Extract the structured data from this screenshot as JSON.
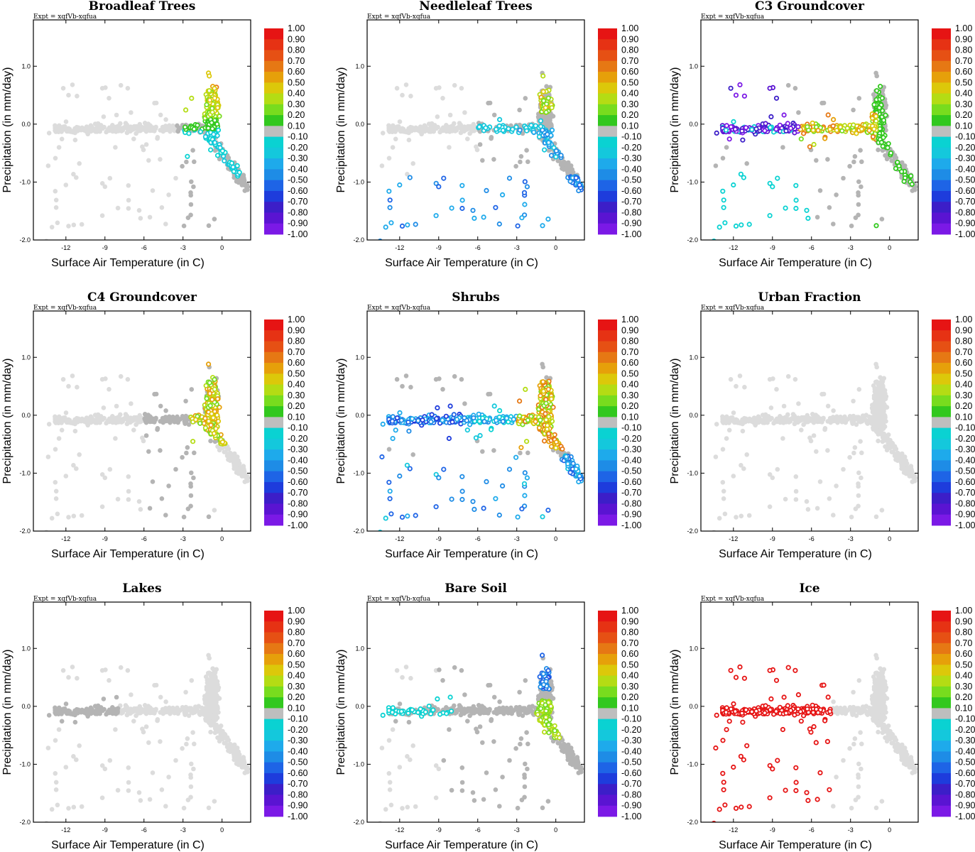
{
  "figure": {
    "expt_label": "Expt = xqfVb-xqfua"
  },
  "colors": {
    "background_points": "#dcdcdc",
    "neutral_points": "#b4b4b4",
    "bins": [
      "#7b19e6",
      "#5a14d2",
      "#3c1ec8",
      "#1e3cdc",
      "#1e64e6",
      "#1e8ce6",
      "#1eaaeb",
      "#14c8dc",
      "#0ad2d2",
      "#bebebe",
      "#32c81e",
      "#78dc1e",
      "#b4dc14",
      "#dcc80a",
      "#e6a00a",
      "#e67814",
      "#e65014",
      "#e63214",
      "#e61414"
    ]
  },
  "chart_data": [
    {
      "type": "scatter",
      "title": "Broadleaf Trees",
      "xlabel": "Surface Air Temperature (in C)",
      "ylabel": "Precipitation (in mm/day)",
      "xlim": [
        -14.5,
        2.2
      ],
      "ylim": [
        -2.0,
        1.8
      ],
      "xticks": [
        "-12",
        "-9",
        "-6",
        "-3",
        "0"
      ],
      "yticks": [
        "-2.0",
        "-1.0",
        "0.0",
        "1.0"
      ],
      "colorbar_labels": [
        "1.00",
        "0.90",
        "0.80",
        "0.70",
        "0.60",
        "0.50",
        "0.40",
        "0.30",
        "0.20",
        "0.10",
        "-0.10",
        "-0.20",
        "-0.30",
        "-0.40",
        "-0.50",
        "-0.60",
        "-0.70",
        "-0.80",
        "-0.90",
        "-1.00"
      ],
      "pattern": "hot_vertical"
    },
    {
      "type": "scatter",
      "title": "Needleleaf Trees",
      "xlabel": "Surface Air Temperature (in C)",
      "ylabel": "Precipitation (in mm/day)",
      "xlim": [
        -14.5,
        2.2
      ],
      "ylim": [
        -2.0,
        1.8
      ],
      "xticks": [
        "-12",
        "-9",
        "-6",
        "-3",
        "0"
      ],
      "yticks": [
        "-2.0",
        "-1.0",
        "0.0",
        "1.0"
      ],
      "colorbar_labels": [
        "1.00",
        "0.90",
        "0.80",
        "0.70",
        "0.60",
        "0.50",
        "0.40",
        "0.30",
        "0.20",
        "0.10",
        "-0.10",
        "-0.20",
        "-0.30",
        "-0.40",
        "-0.50",
        "-0.60",
        "-0.70",
        "-0.80",
        "-0.90",
        "-1.00"
      ],
      "pattern": "needleleaf"
    },
    {
      "type": "scatter",
      "title": "C3 Groundcover",
      "xlabel": "Surface Air Temperature (in C)",
      "ylabel": "Precipitation (in mm/day)",
      "xlim": [
        -14.5,
        2.2
      ],
      "ylim": [
        -2.0,
        1.8
      ],
      "xticks": [
        "-12",
        "-9",
        "-6",
        "-3",
        "0"
      ],
      "yticks": [
        "-2.0",
        "-1.0",
        "0.0",
        "1.0"
      ],
      "colorbar_labels": [
        "1.00",
        "0.90",
        "0.80",
        "0.70",
        "0.60",
        "0.50",
        "0.40",
        "0.30",
        "0.20",
        "0.10",
        "-0.10",
        "-0.20",
        "-0.30",
        "-0.40",
        "-0.50",
        "-0.60",
        "-0.70",
        "-0.80",
        "-0.90",
        "-1.00"
      ],
      "pattern": "c3"
    },
    {
      "type": "scatter",
      "title": "C4 Groundcover",
      "xlabel": "Surface Air Temperature (in C)",
      "ylabel": "Precipitation (in mm/day)",
      "xlim": [
        -14.5,
        2.2
      ],
      "ylim": [
        -2.0,
        1.8
      ],
      "xticks": [
        "-12",
        "-9",
        "-6",
        "-3",
        "0"
      ],
      "yticks": [
        "-2.0",
        "-1.0",
        "0.0",
        "1.0"
      ],
      "colorbar_labels": [
        "1.00",
        "0.90",
        "0.80",
        "0.70",
        "0.60",
        "0.50",
        "0.40",
        "0.30",
        "0.20",
        "0.10",
        "-0.10",
        "-0.20",
        "-0.30",
        "-0.40",
        "-0.50",
        "-0.60",
        "-0.70",
        "-0.80",
        "-0.90",
        "-1.00"
      ],
      "pattern": "c4"
    },
    {
      "type": "scatter",
      "title": "Shrubs",
      "xlabel": "Surface Air Temperature (in C)",
      "ylabel": "Precipitation (in mm/day)",
      "xlim": [
        -14.5,
        2.2
      ],
      "ylim": [
        -2.0,
        1.8
      ],
      "xticks": [
        "-12",
        "-9",
        "-6",
        "-3",
        "0"
      ],
      "yticks": [
        "-2.0",
        "-1.0",
        "0.0",
        "1.0"
      ],
      "colorbar_labels": [
        "1.00",
        "0.90",
        "0.80",
        "0.70",
        "0.60",
        "0.50",
        "0.40",
        "0.30",
        "0.20",
        "0.10",
        "-0.10",
        "-0.20",
        "-0.30",
        "-0.40",
        "-0.50",
        "-0.60",
        "-0.70",
        "-0.80",
        "-0.90",
        "-1.00"
      ],
      "pattern": "shrubs"
    },
    {
      "type": "scatter",
      "title": "Urban Fraction",
      "xlabel": "Surface Air Temperature (in C)",
      "ylabel": "Precipitation (in mm/day)",
      "xlim": [
        -14.5,
        2.2
      ],
      "ylim": [
        -2.0,
        1.8
      ],
      "xticks": [
        "-12",
        "-9",
        "-6",
        "-3",
        "0"
      ],
      "yticks": [
        "-2.0",
        "-1.0",
        "0.0",
        "1.0"
      ],
      "colorbar_labels": [
        "1.00",
        "0.90",
        "0.80",
        "0.70",
        "0.60",
        "0.50",
        "0.40",
        "0.30",
        "0.20",
        "0.10",
        "-0.10",
        "-0.20",
        "-0.30",
        "-0.40",
        "-0.50",
        "-0.60",
        "-0.70",
        "-0.80",
        "-0.90",
        "-1.00"
      ],
      "pattern": "none"
    },
    {
      "type": "scatter",
      "title": "Lakes",
      "xlabel": "Surface Air Temperature (in C)",
      "ylabel": "Precipitation (in mm/day)",
      "xlim": [
        -14.5,
        2.2
      ],
      "ylim": [
        -2.0,
        1.8
      ],
      "xticks": [
        "-12",
        "-9",
        "-6",
        "-3",
        "0"
      ],
      "yticks": [
        "-2.0",
        "-1.0",
        "0.0",
        "1.0"
      ],
      "colorbar_labels": [
        "1.00",
        "0.90",
        "0.80",
        "0.70",
        "0.60",
        "0.50",
        "0.40",
        "0.30",
        "0.20",
        "0.10",
        "-0.10",
        "-0.20",
        "-0.30",
        "-0.40",
        "-0.50",
        "-0.60",
        "-0.70",
        "-0.80",
        "-0.90",
        "-1.00"
      ],
      "pattern": "lakes"
    },
    {
      "type": "scatter",
      "title": "Bare Soil",
      "xlabel": "Surface Air Temperature (in C)",
      "ylabel": "Precipitation (in mm/day)",
      "xlim": [
        -14.5,
        2.2
      ],
      "ylim": [
        -2.0,
        1.8
      ],
      "xticks": [
        "-12",
        "-9",
        "-6",
        "-3",
        "0"
      ],
      "yticks": [
        "-2.0",
        "-1.0",
        "0.0",
        "1.0"
      ],
      "colorbar_labels": [
        "1.00",
        "0.90",
        "0.80",
        "0.70",
        "0.60",
        "0.50",
        "0.40",
        "0.30",
        "0.20",
        "0.10",
        "-0.10",
        "-0.20",
        "-0.30",
        "-0.40",
        "-0.50",
        "-0.60",
        "-0.70",
        "-0.80",
        "-0.90",
        "-1.00"
      ],
      "pattern": "baresoil"
    },
    {
      "type": "scatter",
      "title": "Ice",
      "xlabel": "Surface Air Temperature (in C)",
      "ylabel": "Precipitation (in mm/day)",
      "xlim": [
        -14.5,
        2.2
      ],
      "ylim": [
        -2.0,
        1.8
      ],
      "xticks": [
        "-12",
        "-9",
        "-6",
        "-3",
        "0"
      ],
      "yticks": [
        "-2.0",
        "-1.0",
        "0.0",
        "1.0"
      ],
      "colorbar_labels": [
        "1.00",
        "0.90",
        "0.80",
        "0.70",
        "0.60",
        "0.50",
        "0.40",
        "0.30",
        "0.20",
        "0.10",
        "-0.10",
        "-0.20",
        "-0.30",
        "-0.40",
        "-0.50",
        "-0.60",
        "-0.70",
        "-0.80",
        "-0.90",
        "-1.00"
      ],
      "pattern": "ice"
    }
  ]
}
